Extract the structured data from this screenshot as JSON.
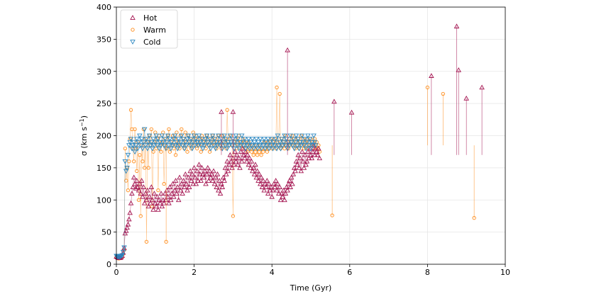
{
  "chart_data": {
    "type": "scatter",
    "xlabel": "Time (Gyr)",
    "ylabel_prefix": "σ (km s",
    "ylabel_sup": "−1",
    "ylabel_suffix": ")",
    "xlim": [
      0,
      10
    ],
    "ylim": [
      0,
      400
    ],
    "xticks": [
      0,
      2,
      4,
      6,
      8,
      10
    ],
    "yticks": [
      0,
      50,
      100,
      150,
      200,
      250,
      300,
      350,
      400
    ],
    "xtick_labels": [
      "0",
      "2",
      "4",
      "6",
      "8",
      "10"
    ],
    "ytick_labels": [
      "0",
      "50",
      "100",
      "150",
      "200",
      "250",
      "300",
      "350",
      "400"
    ],
    "grid": true,
    "legend_position": "top-left",
    "t_start": 0.0,
    "t_step": 0.025,
    "series": [
      {
        "name": "Hot",
        "marker": "triangle-up",
        "color": "#a3124f",
        "values": [
          12,
          11,
          10,
          10,
          10,
          11,
          13,
          18,
          25,
          48,
          52,
          57,
          62,
          70,
          80,
          95,
          110,
          120,
          135,
          125,
          118,
          130,
          120,
          115,
          125,
          110,
          130,
          105,
          120,
          95,
          110,
          100,
          115,
          90,
          105,
          95,
          120,
          100,
          85,
          110,
          95,
          90,
          105,
          85,
          100,
          95,
          110,
          90,
          100,
          95,
          110,
          100,
          115,
          105,
          95,
          120,
          100,
          110,
          125,
          105,
          115,
          130,
          110,
          120,
          100,
          135,
          115,
          125,
          110,
          130,
          120,
          140,
          125,
          115,
          135,
          120,
          145,
          130,
          140,
          125,
          150,
          135,
          125,
          145,
          130,
          155,
          140,
          130,
          150,
          140,
          135,
          145,
          125,
          140,
          150,
          130,
          145,
          135,
          140,
          130,
          145,
          125,
          135,
          120,
          140,
          115,
          130,
          110,
          125,
          120,
          135,
          130,
          150,
          140,
          160,
          145,
          155,
          170,
          160,
          150,
          165,
          155,
          175,
          160,
          170,
          155,
          165,
          150,
          175,
          160,
          180,
          170,
          165,
          175,
          160,
          170,
          155,
          165,
          150,
          160,
          145,
          150,
          140,
          155,
          135,
          145,
          130,
          140,
          125,
          135,
          120,
          130,
          115,
          125,
          120,
          130,
          110,
          125,
          115,
          120,
          105,
          115,
          125,
          120,
          130,
          115,
          125,
          110,
          120,
          100,
          110,
          105,
          115,
          100,
          110,
          120,
          115,
          125,
          130,
          120,
          135,
          125,
          140,
          150,
          145,
          160,
          155,
          170,
          150,
          165,
          145,
          175,
          160,
          150,
          170,
          155,
          160,
          175,
          165,
          180,
          170,
          165,
          175,
          185,
          170,
          180,
          175,
          170,
          180,
          165
        ]
      },
      {
        "name": "Warm",
        "marker": "circle",
        "color": "#ff8c1a",
        "values": [
          11,
          10,
          9,
          9,
          10,
          10,
          12,
          16,
          22,
          180,
          130,
          150,
          115,
          160,
          195,
          240,
          210,
          180,
          160,
          210,
          180,
          145,
          190,
          100,
          170,
          75,
          185,
          160,
          210,
          150,
          195,
          35,
          190,
          150,
          200,
          185,
          210,
          90,
          175,
          190,
          205,
          180,
          195,
          115,
          200,
          185,
          175,
          190,
          205,
          125,
          185,
          195,
          180,
          200,
          210,
          175,
          190,
          185,
          200,
          180,
          195,
          170,
          205,
          185,
          190,
          180,
          200,
          210,
          185,
          195,
          180,
          205,
          190,
          175,
          200,
          185,
          195,
          180,
          190,
          205,
          185,
          195,
          200,
          180,
          190,
          185,
          195,
          175,
          200,
          190,
          185,
          195,
          180,
          200,
          190,
          185,
          175,
          195,
          185,
          200,
          190,
          185,
          195,
          180,
          190,
          200,
          185,
          190,
          180,
          200,
          185,
          190,
          195,
          180,
          240,
          190,
          185,
          195,
          200,
          185,
          75,
          190,
          185,
          195,
          180,
          190,
          200,
          185,
          190,
          180,
          195,
          185,
          190,
          180,
          185,
          175,
          190,
          185,
          180,
          175,
          185,
          170,
          180,
          175,
          185,
          170,
          180,
          175,
          185,
          170,
          180,
          175,
          190,
          180,
          185,
          175,
          190,
          180,
          185,
          195,
          180,
          190,
          185,
          195,
          180,
          275,
          190,
          185,
          265,
          180,
          195,
          185,
          190,
          180,
          200,
          185,
          190,
          180,
          195,
          185,
          190,
          200,
          185,
          195,
          180,
          190,
          185,
          195,
          180,
          190,
          200,
          185,
          195,
          180,
          190,
          185,
          195,
          180,
          190,
          185,
          195,
          185,
          190,
          180,
          195,
          185,
          190,
          180,
          185,
          175
        ]
      },
      {
        "name": "Cold",
        "marker": "triangle-down",
        "color": "#2a86c0",
        "values": [
          13,
          12,
          12,
          11,
          12,
          13,
          14,
          19,
          26,
          160,
          145,
          150,
          170,
          185,
          190,
          195,
          180,
          185,
          190,
          175,
          185,
          195,
          180,
          190,
          200,
          185,
          195,
          180,
          190,
          210,
          185,
          195,
          180,
          190,
          200,
          185,
          190,
          180,
          195,
          185,
          190,
          200,
          185,
          195,
          180,
          190,
          185,
          200,
          190,
          185,
          195,
          180,
          190,
          200,
          185,
          195,
          180,
          190,
          185,
          195,
          200,
          185,
          190,
          180,
          195,
          185,
          190,
          200,
          185,
          195,
          180,
          190,
          185,
          195,
          200,
          190,
          185,
          195,
          180,
          190,
          200,
          185,
          195,
          190,
          185,
          200,
          190,
          185,
          195,
          180,
          190,
          185,
          195,
          200,
          190,
          185,
          195,
          180,
          190,
          200,
          185,
          195,
          180,
          190,
          185,
          200,
          190,
          185,
          195,
          180,
          190,
          200,
          185,
          195,
          180,
          190,
          185,
          200,
          190,
          185,
          195,
          180,
          190,
          200,
          185,
          195,
          180,
          190,
          185,
          200,
          190,
          185,
          195,
          180,
          190,
          185,
          195,
          180,
          190,
          185,
          195,
          180,
          190,
          185,
          195,
          180,
          190,
          185,
          195,
          180,
          190,
          185,
          195,
          180,
          190,
          185,
          195,
          180,
          190,
          185,
          195,
          180,
          190,
          185,
          195,
          180,
          200,
          185,
          190,
          180,
          195,
          185,
          190,
          200,
          185,
          195,
          180,
          190,
          185,
          200,
          190,
          185,
          195,
          180,
          190,
          200,
          185,
          195,
          180,
          190,
          185,
          200,
          190,
          185,
          195,
          180,
          190,
          200,
          185,
          195,
          180,
          190,
          185,
          200,
          190,
          185
        ]
      }
    ]
  },
  "spikes": {
    "hot": [
      {
        "t": 4.4,
        "v": 333
      },
      {
        "t": 8.75,
        "v": 370
      },
      {
        "t": 8.1,
        "v": 293
      },
      {
        "t": 8.8,
        "v": 302
      },
      {
        "t": 9.4,
        "v": 275
      },
      {
        "t": 5.6,
        "v": 253
      },
      {
        "t": 2.7,
        "v": 237
      },
      {
        "t": 3.0,
        "v": 237
      },
      {
        "t": 6.05,
        "v": 236
      },
      {
        "t": 9.0,
        "v": 258
      }
    ],
    "warm": [
      {
        "t": 8.0,
        "v": 275
      },
      {
        "t": 8.4,
        "v": 265
      },
      {
        "t": 9.2,
        "v": 72
      },
      {
        "t": 1.28,
        "v": 35
      },
      {
        "t": 5.55,
        "v": 76
      }
    ]
  }
}
